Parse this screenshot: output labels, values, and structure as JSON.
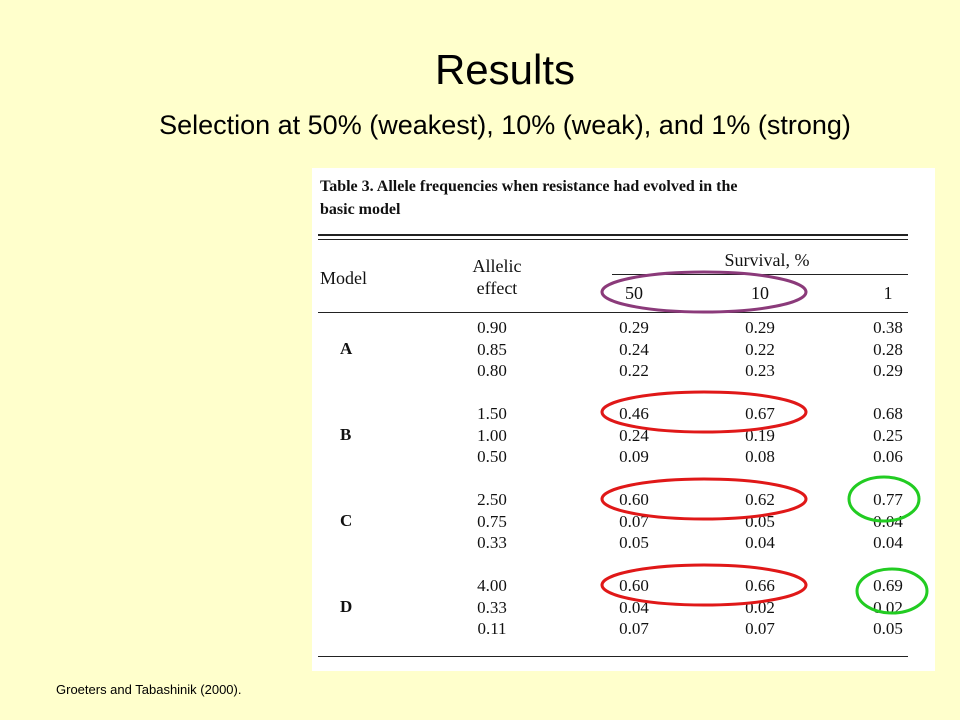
{
  "slide": {
    "title": "Results",
    "subtitle": "Selection at 50% (weakest), 10% (weak), and 1% (strong)",
    "citation": "Groeters and Tabashinik (2000)."
  },
  "table": {
    "caption_line1": "Table 3.   Allele frequencies when resistance had evolved in the",
    "caption_line2": "basic model",
    "headers": {
      "model": "Model",
      "allelic_line1": "Allelic",
      "allelic_line2": "effect",
      "survival": "Survival, %",
      "s50": "50",
      "s10": "10",
      "s1": "1"
    },
    "groups": [
      {
        "model": "A",
        "rows": [
          {
            "effect": "0.90",
            "s50": "0.29",
            "s10": "0.29",
            "s1": "0.38"
          },
          {
            "effect": "0.85",
            "s50": "0.24",
            "s10": "0.22",
            "s1": "0.28"
          },
          {
            "effect": "0.80",
            "s50": "0.22",
            "s10": "0.23",
            "s1": "0.29"
          }
        ]
      },
      {
        "model": "B",
        "rows": [
          {
            "effect": "1.50",
            "s50": "0.46",
            "s10": "0.67",
            "s1": "0.68"
          },
          {
            "effect": "1.00",
            "s50": "0.24",
            "s10": "0.19",
            "s1": "0.25"
          },
          {
            "effect": "0.50",
            "s50": "0.09",
            "s10": "0.08",
            "s1": "0.06"
          }
        ]
      },
      {
        "model": "C",
        "rows": [
          {
            "effect": "2.50",
            "s50": "0.60",
            "s10": "0.62",
            "s1": "0.77"
          },
          {
            "effect": "0.75",
            "s50": "0.07",
            "s10": "0.05",
            "s1": "0.04"
          },
          {
            "effect": "0.33",
            "s50": "0.05",
            "s10": "0.04",
            "s1": "0.04"
          }
        ]
      },
      {
        "model": "D",
        "rows": [
          {
            "effect": "4.00",
            "s50": "0.60",
            "s10": "0.66",
            "s1": "0.69"
          },
          {
            "effect": "0.33",
            "s50": "0.04",
            "s10": "0.02",
            "s1": "0.02"
          },
          {
            "effect": "0.11",
            "s50": "0.07",
            "s10": "0.07",
            "s1": "0.05"
          }
        ]
      }
    ]
  },
  "annotations": {
    "purple_color": "#8B3A7A",
    "red_color": "#E01818",
    "green_color": "#22CC22"
  }
}
